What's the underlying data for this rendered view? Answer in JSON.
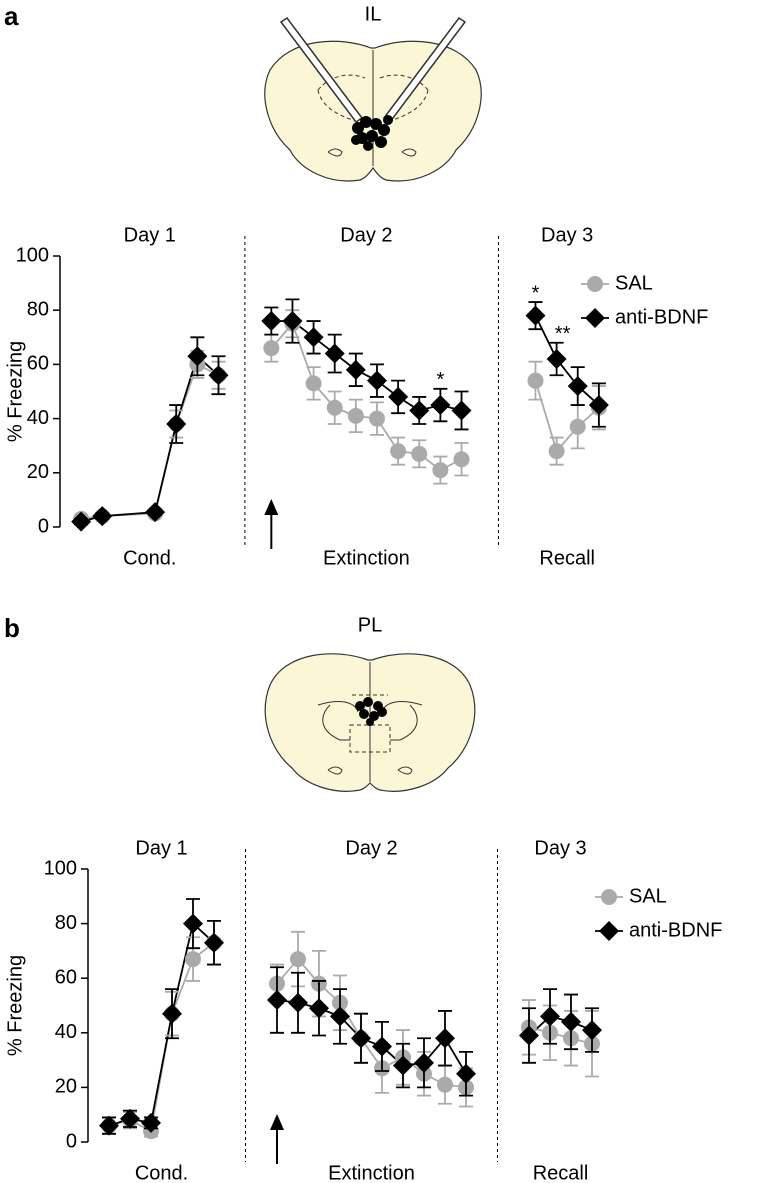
{
  "chart_data": [
    {
      "type": "line",
      "panel": "a",
      "region": "IL",
      "ylabel": "% Freezing",
      "ylim": [
        0,
        100
      ],
      "yticks": [
        0,
        20,
        40,
        60,
        80,
        100
      ],
      "xlim": [
        0,
        26.5
      ],
      "legend": "upper right",
      "sections": [
        {
          "day": "Day 1",
          "phase": "Cond.",
          "x": [
            1,
            2,
            4.5,
            5.5,
            6.5,
            7.5
          ]
        },
        {
          "day": "Day 2",
          "phase": "Extinction",
          "x": [
            10,
            11,
            12,
            13,
            14,
            15,
            16,
            17,
            18,
            19
          ]
        },
        {
          "day": "Day 3",
          "phase": "Recall",
          "x": [
            22.5,
            23.5,
            24.5,
            25.5
          ]
        }
      ],
      "series": [
        {
          "name": "SAL",
          "color": "#aaaaaa",
          "marker": "circle",
          "values": [
            [
              3,
              4,
              5,
              38,
              60,
              56
            ],
            [
              66,
              75,
              53,
              44,
              41,
              40,
              28,
              27,
              21,
              25
            ],
            [
              54,
              28,
              37,
              44
            ]
          ],
          "errors": [
            [
              1,
              1,
              1,
              5,
              5,
              5
            ],
            [
              5,
              5,
              6,
              6,
              6,
              6,
              5,
              5,
              5,
              6
            ],
            [
              7,
              5,
              8,
              8
            ]
          ]
        },
        {
          "name": "anti-BDNF",
          "color": "#000000",
          "marker": "diamond",
          "values": [
            [
              2,
              4,
              5.5,
              38,
              63,
              56
            ],
            [
              76,
              76,
              70,
              64,
              58,
              54,
              48,
              43,
              45,
              43
            ],
            [
              78,
              62,
              52,
              45
            ]
          ],
          "errors": [
            [
              1,
              1,
              1,
              7,
              7,
              7
            ],
            [
              5,
              8,
              6,
              7,
              6,
              6,
              6,
              5,
              6,
              7
            ],
            [
              5,
              6,
              7,
              8
            ]
          ]
        }
      ],
      "annotations": [
        {
          "text": "*",
          "x": 18
        },
        {
          "text": "*",
          "x": 22.5
        },
        {
          "text": "**",
          "x": 23.5
        }
      ]
    },
    {
      "type": "line",
      "panel": "b",
      "region": "PL",
      "ylabel": "% Freezing",
      "ylim": [
        0,
        100
      ],
      "yticks": [
        0,
        20,
        40,
        60,
        80,
        100
      ],
      "xlim": [
        0,
        26
      ],
      "legend": "upper right",
      "sections": [
        {
          "day": "Day 1",
          "phase": "Cond.",
          "x": [
            1,
            2,
            3,
            4,
            5,
            6
          ]
        },
        {
          "day": "Day 2",
          "phase": "Extinction",
          "x": [
            9,
            10,
            11,
            12,
            13,
            14,
            15,
            16,
            17,
            18
          ]
        },
        {
          "day": "Day 3",
          "phase": "Recall",
          "x": [
            21,
            22,
            23,
            24
          ]
        }
      ],
      "series": [
        {
          "name": "SAL",
          "color": "#aaaaaa",
          "marker": "circle",
          "values": [
            [
              6,
              8,
              4,
              47,
              67,
              73
            ],
            [
              58,
              67,
              58,
              51,
              38,
              27,
              31,
              25,
              21,
              20
            ],
            [
              42,
              40,
              38,
              36
            ]
          ],
          "errors": [
            [
              3,
              3,
              2,
              8,
              8,
              8
            ],
            [
              7,
              10,
              12,
              10,
              9,
              9,
              10,
              8,
              7,
              7
            ],
            [
              10,
              10,
              10,
              12
            ]
          ]
        },
        {
          "name": "anti-BDNF",
          "color": "#000000",
          "marker": "diamond",
          "values": [
            [
              6,
              8.5,
              7,
              47,
              80,
              73
            ],
            [
              52,
              51,
              49,
              46,
              38,
              35,
              28,
              29,
              38,
              25
            ],
            [
              39,
              46,
              44,
              41
            ]
          ],
          "errors": [
            [
              3,
              3,
              2,
              9,
              9,
              8
            ],
            [
              12,
              11,
              10,
              10,
              9,
              9,
              8,
              9,
              10,
              8
            ],
            [
              10,
              10,
              10,
              8
            ]
          ]
        }
      ],
      "annotations": []
    }
  ]
}
